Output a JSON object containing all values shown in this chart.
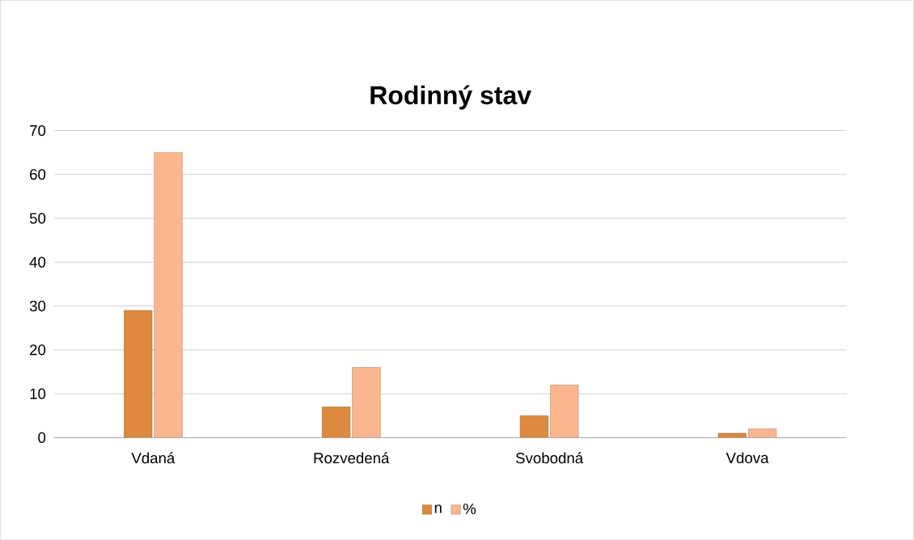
{
  "chart_data": {
    "type": "bar",
    "title": "Rodinný stav",
    "categories": [
      "Vdaná",
      "Rozvedená",
      "Svobodná",
      "Vdova"
    ],
    "series": [
      {
        "name": "n",
        "color": "#dd8a3e",
        "values": [
          29,
          7,
          5,
          1
        ]
      },
      {
        "name": "%",
        "color": "#fbb68f",
        "values": [
          65,
          16,
          12,
          2
        ]
      }
    ],
    "ylim": [
      0,
      70
    ],
    "yticks": [
      0,
      10,
      20,
      30,
      40,
      50,
      60,
      70
    ],
    "grid": "y",
    "legend": "bottom"
  }
}
